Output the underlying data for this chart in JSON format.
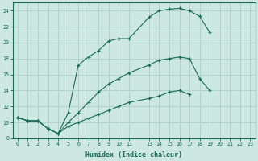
{
  "xlabel": "Humidex (Indice chaleur)",
  "bg_color": "#cce8e0",
  "grid_color": "#b0d4cc",
  "line_color": "#1a6b5a",
  "xlim": [
    -0.5,
    23.5
  ],
  "ylim": [
    8,
    25
  ],
  "xtick_vals": [
    0,
    1,
    2,
    3,
    4,
    5,
    6,
    7,
    8,
    9,
    10,
    11,
    13,
    14,
    15,
    16,
    17,
    18,
    19,
    20,
    21,
    22,
    23
  ],
  "ytick_vals": [
    8,
    10,
    12,
    14,
    16,
    18,
    20,
    22,
    24
  ],
  "curve1_x": [
    0,
    1,
    2,
    3,
    4,
    5,
    6,
    7,
    8,
    9,
    10,
    11,
    13,
    14,
    15,
    16,
    17,
    18,
    19
  ],
  "curve1_y": [
    10.6,
    10.2,
    10.2,
    9.2,
    8.6,
    11.2,
    17.2,
    18.2,
    19.0,
    20.2,
    20.5,
    20.5,
    23.2,
    24.0,
    24.2,
    24.3,
    24.0,
    23.3,
    21.3
  ],
  "curve2_x": [
    0,
    1,
    2,
    3,
    4,
    5,
    6,
    7,
    8,
    9,
    10,
    11,
    13,
    14,
    15,
    16,
    17,
    18,
    19,
    20,
    21,
    22,
    23
  ],
  "curve2_y": [
    10.6,
    10.2,
    10.2,
    9.2,
    8.6,
    10.0,
    11.2,
    12.5,
    13.8,
    14.8,
    15.5,
    16.2,
    17.2,
    17.8,
    18.0,
    18.2,
    18.0,
    15.5,
    14.0,
    null,
    null,
    null,
    null
  ],
  "curve3_x": [
    0,
    1,
    2,
    3,
    4,
    5,
    6,
    7,
    8,
    9,
    10,
    11,
    13,
    14,
    15,
    16,
    17,
    18,
    19,
    20,
    21,
    22,
    23
  ],
  "curve3_y": [
    10.6,
    10.2,
    10.2,
    9.2,
    8.6,
    9.5,
    10.0,
    10.5,
    11.0,
    11.5,
    12.0,
    12.5,
    13.0,
    13.3,
    13.8,
    14.0,
    13.5,
    null,
    null,
    null,
    null,
    null,
    null
  ]
}
